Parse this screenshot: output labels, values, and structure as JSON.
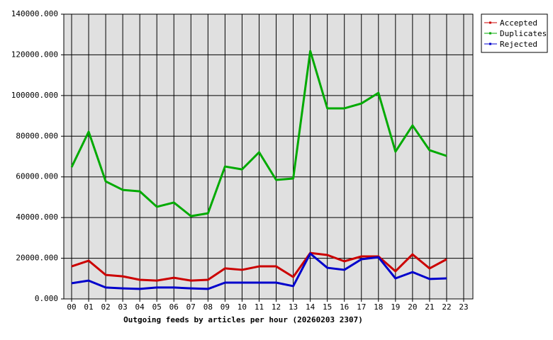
{
  "chart_data": {
    "type": "line",
    "title": "Outgoing feeds by articles per hour (20260203 2307)",
    "categories": [
      "00",
      "01",
      "02",
      "03",
      "04",
      "05",
      "06",
      "07",
      "08",
      "09",
      "10",
      "11",
      "12",
      "13",
      "14",
      "15",
      "16",
      "17",
      "18",
      "19",
      "20",
      "21",
      "22",
      "23"
    ],
    "series": [
      {
        "name": "Accepted",
        "color": "#cc0000",
        "values": [
          16000,
          18800,
          11800,
          11100,
          9400,
          9000,
          10400,
          9000,
          9400,
          15000,
          14300,
          16000,
          16000,
          10800,
          22600,
          21600,
          18500,
          20900,
          20900,
          13600,
          21900,
          15000,
          19500,
          null
        ]
      },
      {
        "name": "Duplicates",
        "color": "#00aa00",
        "values": [
          64800,
          82200,
          57800,
          53600,
          52900,
          45300,
          47400,
          40700,
          42100,
          65100,
          63700,
          72100,
          58500,
          59200,
          121900,
          93700,
          93700,
          96100,
          101300,
          72400,
          85300,
          73100,
          70300,
          null
        ]
      },
      {
        "name": "Rejected",
        "color": "#0000cc",
        "values": [
          7700,
          9000,
          5600,
          5200,
          4900,
          5600,
          5600,
          5200,
          4900,
          8000,
          8000,
          8000,
          8000,
          6300,
          22300,
          15300,
          14300,
          19500,
          20500,
          10100,
          13200,
          9800,
          10100,
          null
        ]
      }
    ],
    "ylim": [
      0,
      140000
    ],
    "yticks": [
      {
        "value": 0,
        "label": "0.000"
      },
      {
        "value": 20000,
        "label": "20000.000"
      },
      {
        "value": 40000,
        "label": "40000.000"
      },
      {
        "value": 60000,
        "label": "60000.000"
      },
      {
        "value": 80000,
        "label": "80000.000"
      },
      {
        "value": 100000,
        "label": "100000.000"
      },
      {
        "value": 120000,
        "label": "120000.000"
      },
      {
        "value": 140000,
        "label": "140000.000"
      }
    ],
    "grid": true,
    "legend": "top-right"
  }
}
